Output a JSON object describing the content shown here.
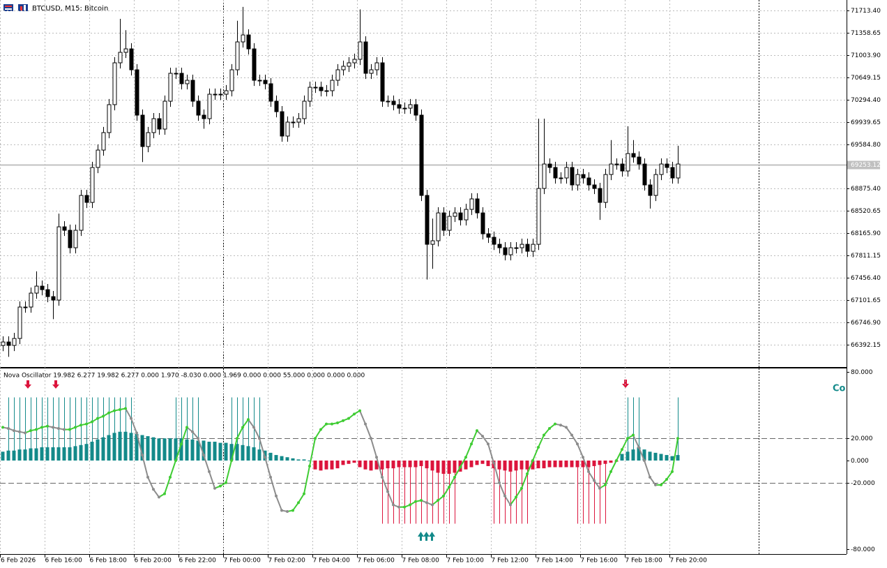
{
  "chart_data": [
    {
      "type": "candlestick",
      "title": "BTCUSD, M15:  Bitcoin",
      "categories": [
        "6 Feb 2026",
        null,
        null,
        null,
        null,
        null,
        null,
        null,
        "6 Feb 16:00",
        null,
        null,
        null,
        null,
        null,
        null,
        null,
        "6 Feb 18:00",
        null,
        null,
        null,
        null,
        null,
        null,
        null,
        "6 Feb 20:00",
        null,
        null,
        null,
        null,
        null,
        null,
        null,
        "6 Feb 22:00",
        null,
        null,
        null,
        null,
        null,
        null,
        null,
        "7 Feb 00:00",
        null,
        null,
        null,
        null,
        null,
        null,
        null,
        "7 Feb 02:00",
        null,
        null,
        null,
        null,
        null,
        null,
        null,
        "7 Feb 04:00",
        null,
        null,
        null,
        null,
        null,
        null,
        null,
        "7 Feb 06:00",
        null,
        null,
        null,
        null,
        null,
        null,
        null,
        "7 Feb 08:00",
        null,
        null,
        null,
        null,
        null,
        null,
        null,
        "7 Feb 10:00",
        null,
        null,
        null,
        null,
        null,
        null,
        null,
        "7 Feb 12:00",
        null,
        null,
        null,
        null,
        null,
        null,
        null,
        "7 Feb 14:00",
        null,
        null,
        null,
        null,
        null,
        null,
        null,
        "7 Feb 16:00",
        null,
        null,
        null,
        null,
        null,
        null,
        null,
        "7 Feb 18:00",
        null,
        null,
        null,
        null,
        null,
        null,
        null,
        "7 Feb 20:00",
        null
      ],
      "open": [
        66380,
        66436,
        66381,
        66492,
        66992,
        66992,
        67214,
        67325,
        67269,
        67158,
        67103,
        68269,
        68214,
        67936,
        68214,
        68769,
        68658,
        69214,
        69491,
        69769,
        70214,
        70880,
        71047,
        71102,
        70769,
        70047,
        69547,
        69769,
        69991,
        69825,
        70269,
        70713,
        70713,
        70547,
        70602,
        70269,
        70047,
        69991,
        70380,
        70380,
        70380,
        70436,
        70769,
        71213,
        71324,
        71102,
        70602,
        70602,
        70547,
        70269,
        70102,
        69714,
        69936,
        69936,
        69991,
        70269,
        70491,
        70491,
        70436,
        70436,
        70602,
        70769,
        70825,
        70880,
        70936,
        71213,
        70713,
        70769,
        70880,
        70269,
        70269,
        70214,
        70158,
        70158,
        70214,
        70047,
        68769,
        67991,
        68047,
        68491,
        68214,
        68436,
        68491,
        68380,
        68547,
        68714,
        68491,
        68158,
        68103,
        67991,
        67936,
        67825,
        67936,
        67936,
        67991,
        67880,
        67991,
        68880,
        69269,
        69214,
        69047,
        69047,
        69214,
        68936,
        69102,
        69047,
        68936,
        68880,
        68658,
        69102,
        69269,
        69269,
        69158,
        69436,
        69380,
        69269,
        68936,
        68769,
        69102,
        69269,
        69214,
        69047
      ],
      "high": [
        66526,
        66526,
        66582,
        67082,
        67082,
        67304,
        67560,
        67415,
        67359,
        67248,
        68480,
        68359,
        68304,
        68304,
        68859,
        68859,
        69304,
        69581,
        69859,
        70304,
        70970,
        71580,
        71400,
        71192,
        70859,
        70137,
        69859,
        70081,
        70081,
        70359,
        70803,
        70803,
        70803,
        70692,
        70692,
        70359,
        70137,
        70470,
        70470,
        70470,
        70526,
        70859,
        71550,
        71770,
        71414,
        71192,
        70692,
        70692,
        70637,
        70359,
        70192,
        70026,
        70026,
        70081,
        70359,
        70581,
        70581,
        70581,
        70526,
        70692,
        70859,
        70915,
        70970,
        71026,
        71730,
        71303,
        70859,
        70970,
        70970,
        70359,
        70359,
        70304,
        70248,
        70304,
        70304,
        70137,
        68859,
        68400,
        68581,
        68581,
        68526,
        68581,
        68581,
        68637,
        68804,
        68804,
        68581,
        68248,
        68193,
        68081,
        68026,
        68026,
        68026,
        68081,
        68081,
        68081,
        69990,
        69990,
        69359,
        69304,
        69137,
        69304,
        69304,
        69192,
        69192,
        69137,
        69026,
        68970,
        69192,
        69650,
        69359,
        69359,
        69870,
        69650,
        69470,
        69359,
        69026,
        69192,
        69359,
        69359,
        69304,
        69560
      ],
      "low": [
        66290,
        66200,
        66291,
        66402,
        66902,
        66902,
        67124,
        67179,
        67068,
        66800,
        67013,
        68124,
        67846,
        67846,
        68124,
        68568,
        68568,
        69124,
        69401,
        69679,
        70124,
        70790,
        70957,
        70679,
        69957,
        69300,
        69457,
        69679,
        69735,
        69735,
        70179,
        70623,
        70457,
        70457,
        70179,
        69957,
        69830,
        69901,
        70290,
        70290,
        70290,
        70346,
        70679,
        71123,
        71012,
        70512,
        70512,
        70457,
        70179,
        70012,
        69624,
        69624,
        69846,
        69846,
        69901,
        70179,
        70401,
        70346,
        70346,
        70346,
        70512,
        70679,
        70735,
        70790,
        70846,
        70623,
        70623,
        70679,
        70179,
        70179,
        70124,
        70068,
        70068,
        70068,
        69957,
        68679,
        67430,
        67600,
        67957,
        68124,
        68124,
        68346,
        68290,
        68290,
        68457,
        68401,
        68068,
        68013,
        67901,
        67846,
        67735,
        67735,
        67846,
        67846,
        67790,
        67790,
        67901,
        68790,
        69124,
        68957,
        68957,
        68957,
        68846,
        68846,
        68957,
        68846,
        68790,
        68380,
        68568,
        69012,
        69179,
        69068,
        69068,
        69290,
        69179,
        68846,
        68560,
        68679,
        69012,
        69124,
        68957,
        68957
      ],
      "close": [
        66436,
        66381,
        66492,
        66992,
        66992,
        67214,
        67325,
        67269,
        67158,
        67103,
        68269,
        68214,
        67936,
        68214,
        68769,
        68658,
        69214,
        69491,
        69769,
        70214,
        70880,
        71047,
        71102,
        70769,
        70047,
        69547,
        69769,
        69991,
        69825,
        70269,
        70713,
        70713,
        70547,
        70602,
        70269,
        70047,
        69991,
        70380,
        70380,
        70380,
        70436,
        70769,
        71213,
        71324,
        71102,
        70602,
        70602,
        70547,
        70269,
        70102,
        69714,
        69936,
        69936,
        69991,
        70269,
        70491,
        70491,
        70436,
        70436,
        70602,
        70769,
        70825,
        70880,
        70936,
        71213,
        70713,
        70769,
        70880,
        70269,
        70269,
        70214,
        70158,
        70158,
        70214,
        70047,
        68769,
        67991,
        68047,
        68491,
        68214,
        68436,
        68491,
        68380,
        68547,
        68714,
        68491,
        68158,
        68103,
        67991,
        67936,
        67825,
        67936,
        67936,
        67991,
        67880,
        67991,
        68880,
        69269,
        69214,
        69047,
        69047,
        69214,
        68936,
        69102,
        69047,
        68936,
        68880,
        68658,
        69102,
        69269,
        69269,
        69158,
        69436,
        69380,
        69269,
        68936,
        68769,
        69102,
        69269,
        69214,
        69047,
        69269
      ],
      "up_color": "#ffffff",
      "down_color": "#000000",
      "outline_color": "#000000",
      "ylim": [
        66037,
        71880
      ],
      "yticks": [
        {
          "value": 71713.4,
          "label": "71713.40"
        },
        71358.65,
        {
          "value": 71003.9,
          "label": "71003.90"
        },
        70649.15,
        {
          "value": 70294.4,
          "label": "70294.40"
        },
        69939.65,
        {
          "value": 69584.8,
          "label": "69584.80"
        },
        {
          "value": 68875.4,
          "label": "68875.40"
        },
        68520.65,
        {
          "value": 68165.9,
          "label": "68165.90"
        },
        67811.15,
        {
          "value": 67456.4,
          "label": "67456.40"
        },
        67101.65,
        {
          "value": 66746.9,
          "label": "66746.90"
        },
        66392.15
      ],
      "last_price": 69253.12,
      "grid": true
    },
    {
      "type": "oscillator",
      "title": "Nova Oscillator 19.982 6.277 19.982 6.277 0.000 1.970 -8.030 0.000 1.969 0.000 0.000 55.000 0.000 0.000 0.000",
      "annotation": "Co",
      "ylim": [
        -84.4,
        83.15
      ],
      "yticks": [
        {
          "value": 80,
          "label": "80.000"
        },
        {
          "value": 20,
          "label": "20.000"
        },
        {
          "value": 0,
          "label": "0.000"
        },
        {
          "value": -20,
          "label": "-20.000"
        },
        {
          "value": -80,
          "label": "-80.000"
        }
      ],
      "levels": [
        20,
        -20
      ],
      "histogram": {
        "up_color": "#138a8a",
        "down_color": "#dc143c",
        "values": [
          8,
          9,
          9,
          10,
          10,
          11,
          11,
          12,
          12,
          12,
          12,
          12,
          12,
          13,
          14,
          15,
          17,
          19,
          21,
          23,
          25,
          26,
          26,
          25,
          24,
          23,
          22,
          21,
          20,
          20,
          20,
          20,
          20,
          19,
          19,
          18,
          18,
          17,
          17,
          16,
          16,
          15,
          15,
          14,
          13,
          12,
          10,
          9,
          7,
          5,
          4,
          3,
          2,
          1,
          1,
          0,
          -8,
          -9,
          -8,
          -8,
          -7,
          -4,
          -3,
          -2,
          -6,
          -8,
          -9,
          -8,
          -8,
          -7,
          -7,
          -6,
          -6,
          -6,
          -6,
          -5,
          -7,
          -9,
          -11,
          -12,
          -12,
          -11,
          -10,
          -8,
          -6,
          -4,
          -3,
          -5,
          -7,
          -8,
          -9,
          -10,
          -9,
          -8,
          -8,
          -8,
          -7,
          -7,
          -6,
          -6,
          -6,
          -6,
          -6,
          -6,
          -6,
          -6,
          -5,
          -4,
          -3,
          -2,
          -1,
          6,
          8,
          10,
          12,
          10,
          8,
          7,
          6,
          5,
          4,
          5
        ]
      },
      "line": {
        "up_color": "#3fcc33",
        "down_color": "#8c8c8c",
        "values": [
          30,
          29,
          27,
          26,
          25,
          27,
          28,
          30,
          31,
          30,
          29,
          28,
          28,
          30,
          32,
          33,
          35,
          38,
          40,
          43,
          45,
          46,
          47,
          38,
          25,
          5,
          -15,
          -26,
          -33,
          -30,
          -15,
          0,
          15,
          30,
          26,
          20,
          5,
          -10,
          -25,
          -23,
          -20,
          0,
          20,
          30,
          37,
          30,
          20,
          3,
          -15,
          -32,
          -45,
          -46,
          -45,
          -38,
          -30,
          -5,
          20,
          28,
          33,
          33,
          34,
          36,
          38,
          42,
          45,
          33,
          20,
          3,
          -15,
          -28,
          -40,
          -42,
          -42,
          -40,
          -37,
          -36,
          -38,
          -40,
          -36,
          -32,
          -24,
          -15,
          -6,
          3,
          15,
          27,
          22,
          15,
          -2,
          -20,
          -32,
          -40,
          -33,
          -25,
          -12,
          0,
          12,
          23,
          29,
          33,
          32,
          30,
          23,
          15,
          3,
          -10,
          -18,
          -25,
          -22,
          -10,
          0,
          10,
          20,
          23,
          12,
          0,
          -15,
          -22,
          -22,
          -17,
          -10,
          20
        ]
      },
      "signals": {
        "up_color": "#138a8a",
        "down_color": "#dc143c",
        "values": [
          null,
          57,
          57,
          57,
          57,
          57,
          57,
          57,
          57,
          57,
          57,
          57,
          57,
          57,
          57,
          57,
          57,
          57,
          57,
          57,
          57,
          57,
          57,
          57,
          null,
          null,
          null,
          null,
          null,
          null,
          null,
          57,
          57,
          57,
          57,
          57,
          null,
          null,
          null,
          null,
          null,
          57,
          57,
          57,
          57,
          57,
          57,
          null,
          null,
          null,
          null,
          null,
          null,
          null,
          null,
          null,
          null,
          null,
          null,
          null,
          null,
          null,
          null,
          null,
          null,
          null,
          null,
          null,
          -57,
          -57,
          -57,
          -57,
          -57,
          -57,
          -57,
          -57,
          -57,
          -57,
          -57,
          -57,
          -57,
          -57,
          null,
          null,
          null,
          null,
          null,
          null,
          -57,
          -57,
          -57,
          -57,
          -57,
          -57,
          -57,
          null,
          null,
          null,
          null,
          null,
          null,
          null,
          null,
          -57,
          -57,
          -57,
          -57,
          -57,
          -57,
          null,
          null,
          null,
          57,
          57,
          57,
          null,
          null,
          null,
          null,
          null,
          null,
          57
        ]
      }
    }
  ]
}
